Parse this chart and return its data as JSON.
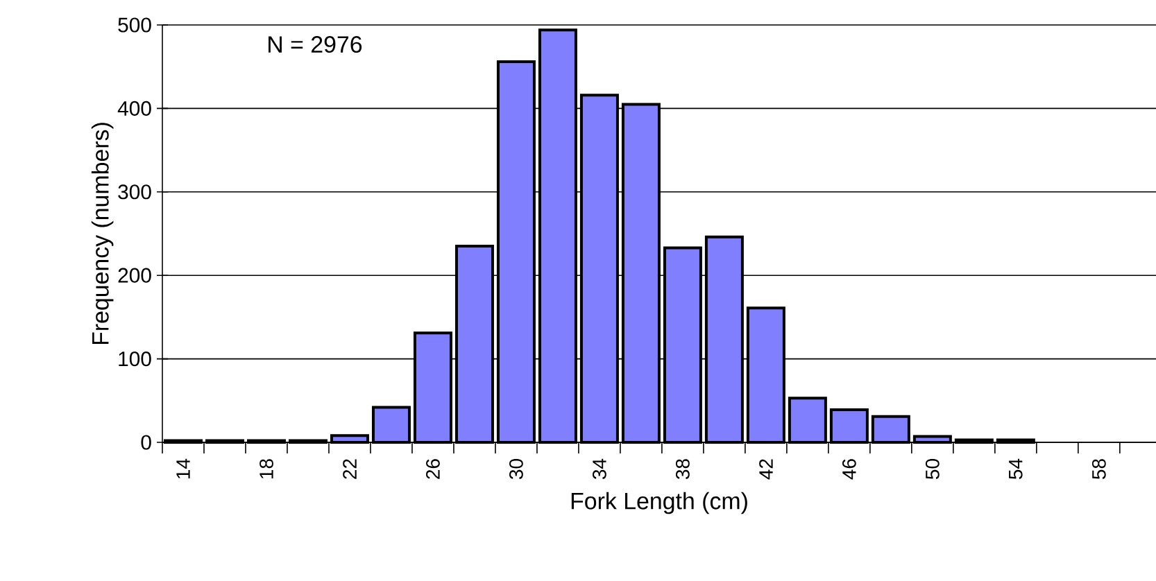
{
  "chart_data": {
    "type": "bar",
    "xlabel": "Fork Length (cm)",
    "ylabel": "Frequency (numbers)",
    "categories": [
      "14",
      null,
      "18",
      null,
      "22",
      null,
      "26",
      null,
      "30",
      null,
      "34",
      null,
      "38",
      null,
      "42",
      null,
      "46",
      null,
      "50",
      null,
      "54",
      null,
      "58"
    ],
    "values": [
      2,
      2,
      2,
      2,
      8,
      42,
      131,
      235,
      456,
      494,
      416,
      405,
      233,
      246,
      161,
      53,
      39,
      31,
      7,
      3,
      3,
      null,
      null
    ],
    "color": "#8080ff",
    "ylim": [
      0,
      500
    ],
    "yticks": [
      0,
      100,
      200,
      300,
      400,
      500
    ],
    "grid": "y",
    "annotations": [
      "N = 2976"
    ]
  }
}
